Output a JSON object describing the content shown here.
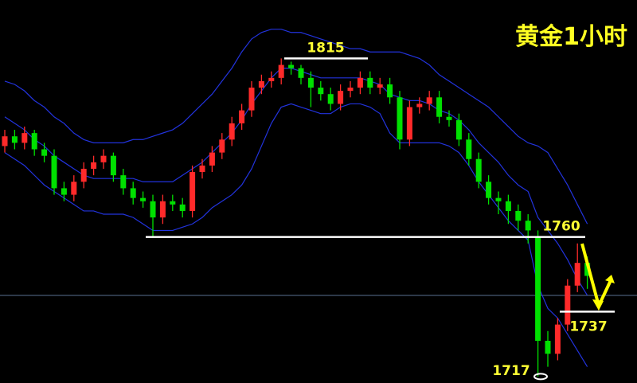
{
  "chart_data": {
    "type": "candlestick",
    "title": "黄金1小时",
    "ylim": [
      1715,
      1833
    ],
    "up_color": "#ff2a2a",
    "down_color": "#00e000",
    "candles": {
      "open": [
        1788,
        1791,
        1789,
        1792,
        1787,
        1785,
        1775,
        1773,
        1777,
        1781,
        1783,
        1785,
        1779,
        1775,
        1772,
        1771,
        1766,
        1771,
        1770,
        1768,
        1780,
        1782,
        1786,
        1790,
        1795,
        1799,
        1806,
        1808,
        1809,
        1813,
        1812,
        1809,
        1806,
        1804,
        1801,
        1805,
        1806,
        1809,
        1806,
        1807,
        1803,
        1790,
        1800,
        1801,
        1803,
        1797,
        1796,
        1790,
        1784,
        1777,
        1772,
        1771,
        1768,
        1765,
        1760,
        1728,
        1724,
        1733,
        1745,
        1752
      ],
      "high": [
        1793,
        1793,
        1794,
        1793,
        1789,
        1787,
        1777,
        1779,
        1783,
        1785,
        1787,
        1786,
        1781,
        1777,
        1774,
        1773,
        1773,
        1773,
        1772,
        1782,
        1784,
        1788,
        1792,
        1797,
        1801,
        1808,
        1810,
        1811,
        1815,
        1814,
        1813,
        1811,
        1808,
        1806,
        1807,
        1808,
        1811,
        1811,
        1809,
        1809,
        1805,
        1802,
        1803,
        1805,
        1805,
        1799,
        1798,
        1792,
        1786,
        1779,
        1774,
        1773,
        1770,
        1767,
        1762,
        1731,
        1735,
        1747,
        1758,
        1754
      ],
      "low": [
        1786,
        1787,
        1787,
        1785,
        1783,
        1773,
        1771,
        1771,
        1775,
        1779,
        1781,
        1777,
        1773,
        1770,
        1769,
        1760,
        1764,
        1768,
        1766,
        1766,
        1778,
        1780,
        1784,
        1788,
        1793,
        1797,
        1804,
        1806,
        1807,
        1810,
        1807,
        1800,
        1802,
        1799,
        1799,
        1803,
        1804,
        1804,
        1804,
        1801,
        1787,
        1788,
        1798,
        1799,
        1795,
        1794,
        1788,
        1782,
        1775,
        1770,
        1767,
        1764,
        1762,
        1758,
        1717,
        1720,
        1722,
        1731,
        1743,
        1744
      ],
      "close": [
        1791,
        1789,
        1792,
        1787,
        1785,
        1775,
        1773,
        1777,
        1781,
        1783,
        1785,
        1779,
        1775,
        1772,
        1771,
        1766,
        1771,
        1770,
        1768,
        1780,
        1782,
        1786,
        1790,
        1795,
        1799,
        1806,
        1808,
        1809,
        1813,
        1812,
        1809,
        1806,
        1804,
        1801,
        1805,
        1806,
        1809,
        1806,
        1807,
        1803,
        1790,
        1800,
        1801,
        1803,
        1797,
        1796,
        1790,
        1784,
        1777,
        1772,
        1771,
        1768,
        1765,
        1762,
        1728,
        1724,
        1733,
        1745,
        1752,
        1748
      ]
    },
    "bands": [
      {
        "color": "#2233dd",
        "values": [
          1808,
          1807,
          1805,
          1802,
          1800,
          1797,
          1795,
          1792,
          1790,
          1789,
          1789,
          1789,
          1789,
          1790,
          1790,
          1791,
          1792,
          1793,
          1795,
          1798,
          1801,
          1804,
          1808,
          1812,
          1817,
          1821,
          1823,
          1824,
          1824,
          1823,
          1823,
          1822,
          1821,
          1820,
          1819,
          1818,
          1818,
          1817,
          1817,
          1817,
          1817,
          1816,
          1815,
          1813,
          1810,
          1808,
          1806,
          1804,
          1802,
          1800,
          1797,
          1794,
          1791,
          1789,
          1788,
          1786,
          1781,
          1776,
          1770,
          1764
        ]
      },
      {
        "color": "#2233dd",
        "values": [
          1797,
          1795,
          1793,
          1790,
          1788,
          1785,
          1783,
          1781,
          1779,
          1778,
          1778,
          1778,
          1778,
          1778,
          1777,
          1777,
          1777,
          1777,
          1779,
          1781,
          1783,
          1786,
          1789,
          1792,
          1796,
          1801,
          1805,
          1809,
          1812,
          1812,
          1811,
          1810,
          1809,
          1809,
          1809,
          1809,
          1809,
          1808,
          1807,
          1804,
          1803,
          1802,
          1802,
          1801,
          1799,
          1798,
          1796,
          1793,
          1789,
          1786,
          1783,
          1779,
          1776,
          1774,
          1766,
          1762,
          1758,
          1753,
          1747,
          1742
        ]
      },
      {
        "color": "#2233dd",
        "values": [
          1786,
          1784,
          1782,
          1779,
          1776,
          1774,
          1772,
          1770,
          1768,
          1768,
          1767,
          1767,
          1767,
          1766,
          1764,
          1762,
          1762,
          1762,
          1763,
          1764,
          1766,
          1769,
          1771,
          1773,
          1776,
          1781,
          1788,
          1795,
          1800,
          1801,
          1800,
          1799,
          1798,
          1798,
          1800,
          1801,
          1801,
          1800,
          1798,
          1792,
          1789,
          1789,
          1789,
          1789,
          1789,
          1788,
          1786,
          1782,
          1777,
          1773,
          1769,
          1765,
          1762,
          1759,
          1745,
          1738,
          1735,
          1730,
          1725,
          1720
        ]
      }
    ],
    "levels": [
      1815,
      1760,
      1737,
      1717
    ],
    "level_color": "#ffffff",
    "price_line": 1742
  }
}
